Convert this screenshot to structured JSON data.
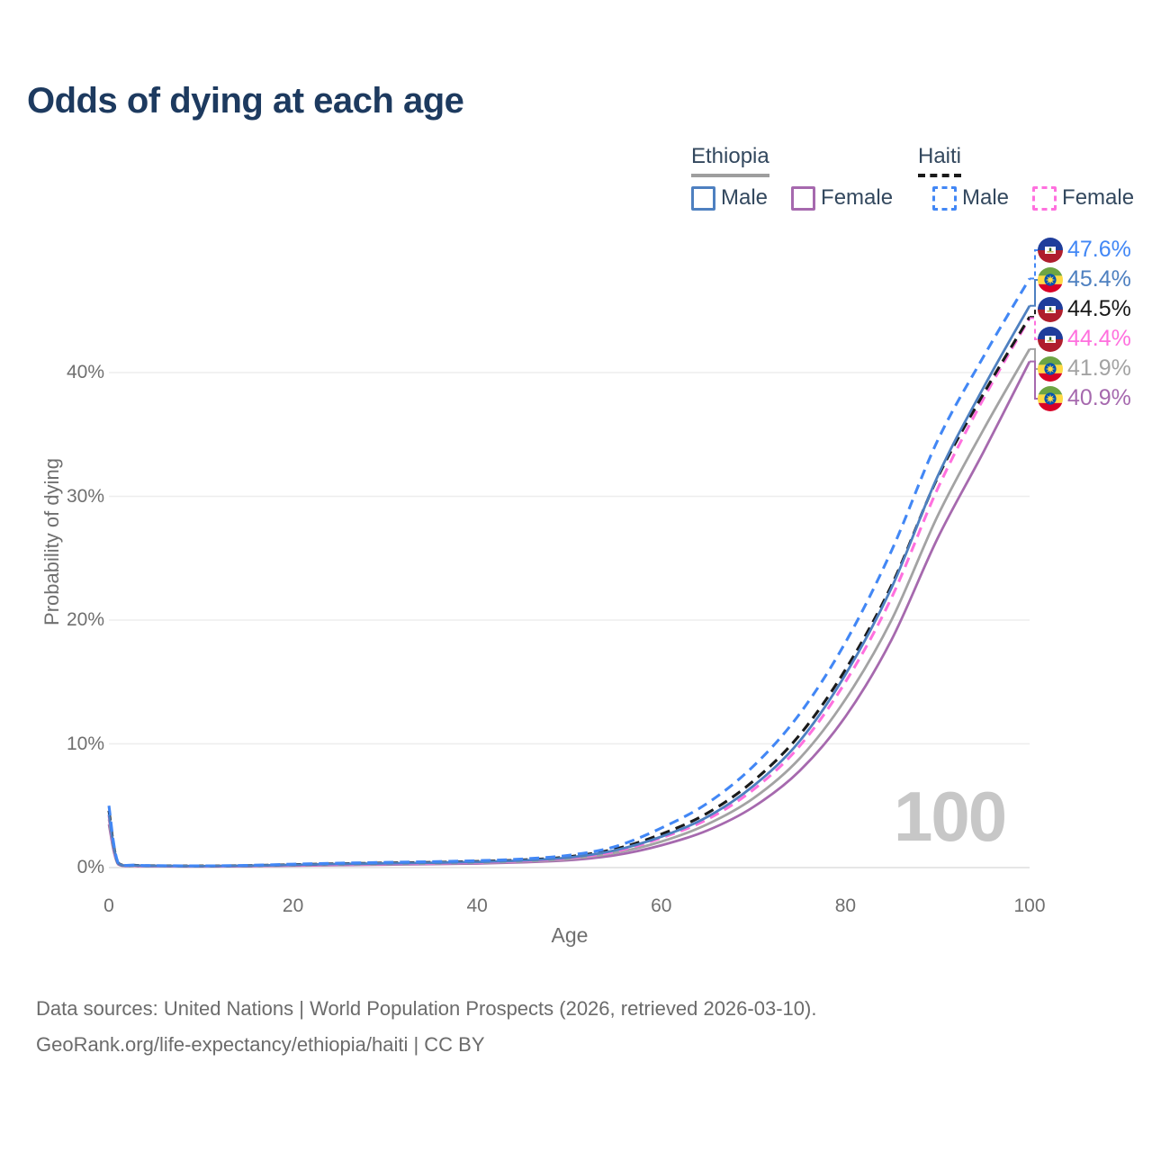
{
  "page": {
    "title": "Odds of dying at each age",
    "watermark": "100",
    "footer_line1": "Data sources: United Nations | World Population Prospects (2026, retrieved 2026-03-10).",
    "footer_line2": "GeoRank.org/life-expectancy/ethiopia/haiti | CC BY"
  },
  "legend": {
    "groups": [
      {
        "name": "Ethiopia",
        "line": "solid",
        "line_color": "#9e9e9e",
        "items": [
          {
            "label": "Male",
            "color": "#4e80c0",
            "style": "solid"
          },
          {
            "label": "Female",
            "color": "#a669ae",
            "style": "solid"
          }
        ]
      },
      {
        "name": "Haiti",
        "line": "dashed",
        "line_color": "#1a1a1a",
        "items": [
          {
            "label": "Male",
            "color": "#4287f5",
            "style": "dashed"
          },
          {
            "label": "Female",
            "color": "#ff70de",
            "style": "dashed"
          }
        ]
      }
    ]
  },
  "chart_data": {
    "type": "line",
    "title": "Odds of dying at each age",
    "xlabel": "Age",
    "ylabel": "Probability of dying",
    "xlim": [
      0,
      100
    ],
    "ylim_percent": [
      0,
      48
    ],
    "grid": "horizontal",
    "x_ticks": [
      {
        "value": 0,
        "label": "0"
      },
      {
        "value": 20,
        "label": "20"
      },
      {
        "value": 40,
        "label": "40"
      },
      {
        "value": 60,
        "label": "60"
      },
      {
        "value": 80,
        "label": "80"
      },
      {
        "value": 100,
        "label": "100"
      }
    ],
    "y_ticks": [
      {
        "value": 0,
        "label": "0%"
      },
      {
        "value": 10,
        "label": "10%"
      },
      {
        "value": 20,
        "label": "20%"
      },
      {
        "value": 30,
        "label": "30%"
      },
      {
        "value": 40,
        "label": "40%"
      }
    ],
    "x_ages": [
      0,
      1,
      3,
      5,
      10,
      15,
      20,
      25,
      30,
      35,
      40,
      45,
      50,
      55,
      60,
      65,
      70,
      75,
      80,
      85,
      90,
      95,
      100
    ],
    "series": [
      {
        "name": "Haiti Male",
        "country": "haiti",
        "sex": "male",
        "style": "dashed",
        "color": "#4287f5",
        "flag_icon": "haiti-flag-icon",
        "end_label": "47.6%",
        "values": [
          5.0,
          0.4,
          0.2,
          0.16,
          0.14,
          0.18,
          0.28,
          0.36,
          0.42,
          0.48,
          0.56,
          0.7,
          1.0,
          1.7,
          3.2,
          5.2,
          8.2,
          12.4,
          18.2,
          25.6,
          34.5,
          41.3,
          47.6
        ]
      },
      {
        "name": "Ethiopia Male",
        "country": "ethiopia",
        "sex": "male",
        "style": "solid",
        "color": "#4e80c0",
        "flag_icon": "ethiopia-flag-icon",
        "end_label": "45.4%",
        "values": [
          4.3,
          0.35,
          0.17,
          0.14,
          0.12,
          0.15,
          0.22,
          0.29,
          0.34,
          0.39,
          0.46,
          0.58,
          0.82,
          1.4,
          2.5,
          4.1,
          6.6,
          10.2,
          15.6,
          22.6,
          31.6,
          38.8,
          45.4
        ]
      },
      {
        "name": "Haiti Both sexes",
        "country": "haiti",
        "sex": "both",
        "style": "dashed",
        "color": "#1a1a1a",
        "flag_icon": "haiti-flag-icon",
        "end_label": "44.5%",
        "values": [
          4.6,
          0.37,
          0.18,
          0.15,
          0.13,
          0.16,
          0.24,
          0.31,
          0.37,
          0.42,
          0.5,
          0.62,
          0.88,
          1.5,
          2.7,
          4.4,
          7.0,
          10.7,
          16.0,
          22.8,
          31.5,
          38.3,
          44.5
        ]
      },
      {
        "name": "Haiti Female",
        "country": "haiti",
        "sex": "female",
        "style": "dashed",
        "color": "#ff70de",
        "flag_icon": "haiti-flag-icon",
        "end_label": "44.4%",
        "values": [
          4.2,
          0.33,
          0.16,
          0.13,
          0.11,
          0.14,
          0.2,
          0.26,
          0.31,
          0.36,
          0.43,
          0.55,
          0.78,
          1.3,
          2.4,
          3.9,
          6.3,
          9.8,
          15.0,
          21.8,
          30.6,
          37.9,
          44.4
        ]
      },
      {
        "name": "Ethiopia Both sexes",
        "country": "ethiopia",
        "sex": "both",
        "style": "solid",
        "color": "#a3a3a3",
        "flag_icon": "ethiopia-flag-icon",
        "end_label": "41.9%",
        "values": [
          3.9,
          0.3,
          0.15,
          0.12,
          0.1,
          0.13,
          0.19,
          0.24,
          0.28,
          0.33,
          0.39,
          0.5,
          0.7,
          1.2,
          2.1,
          3.5,
          5.6,
          8.8,
          13.6,
          20.0,
          28.4,
          35.4,
          41.9
        ]
      },
      {
        "name": "Ethiopia Female",
        "country": "ethiopia",
        "sex": "female",
        "style": "solid",
        "color": "#a669ae",
        "flag_icon": "ethiopia-flag-icon",
        "end_label": "40.9%",
        "values": [
          3.5,
          0.27,
          0.13,
          0.11,
          0.09,
          0.11,
          0.16,
          0.2,
          0.24,
          0.28,
          0.33,
          0.43,
          0.6,
          1.0,
          1.8,
          3.0,
          4.9,
          7.8,
          12.2,
          18.4,
          26.6,
          33.6,
          40.9
        ]
      }
    ]
  }
}
